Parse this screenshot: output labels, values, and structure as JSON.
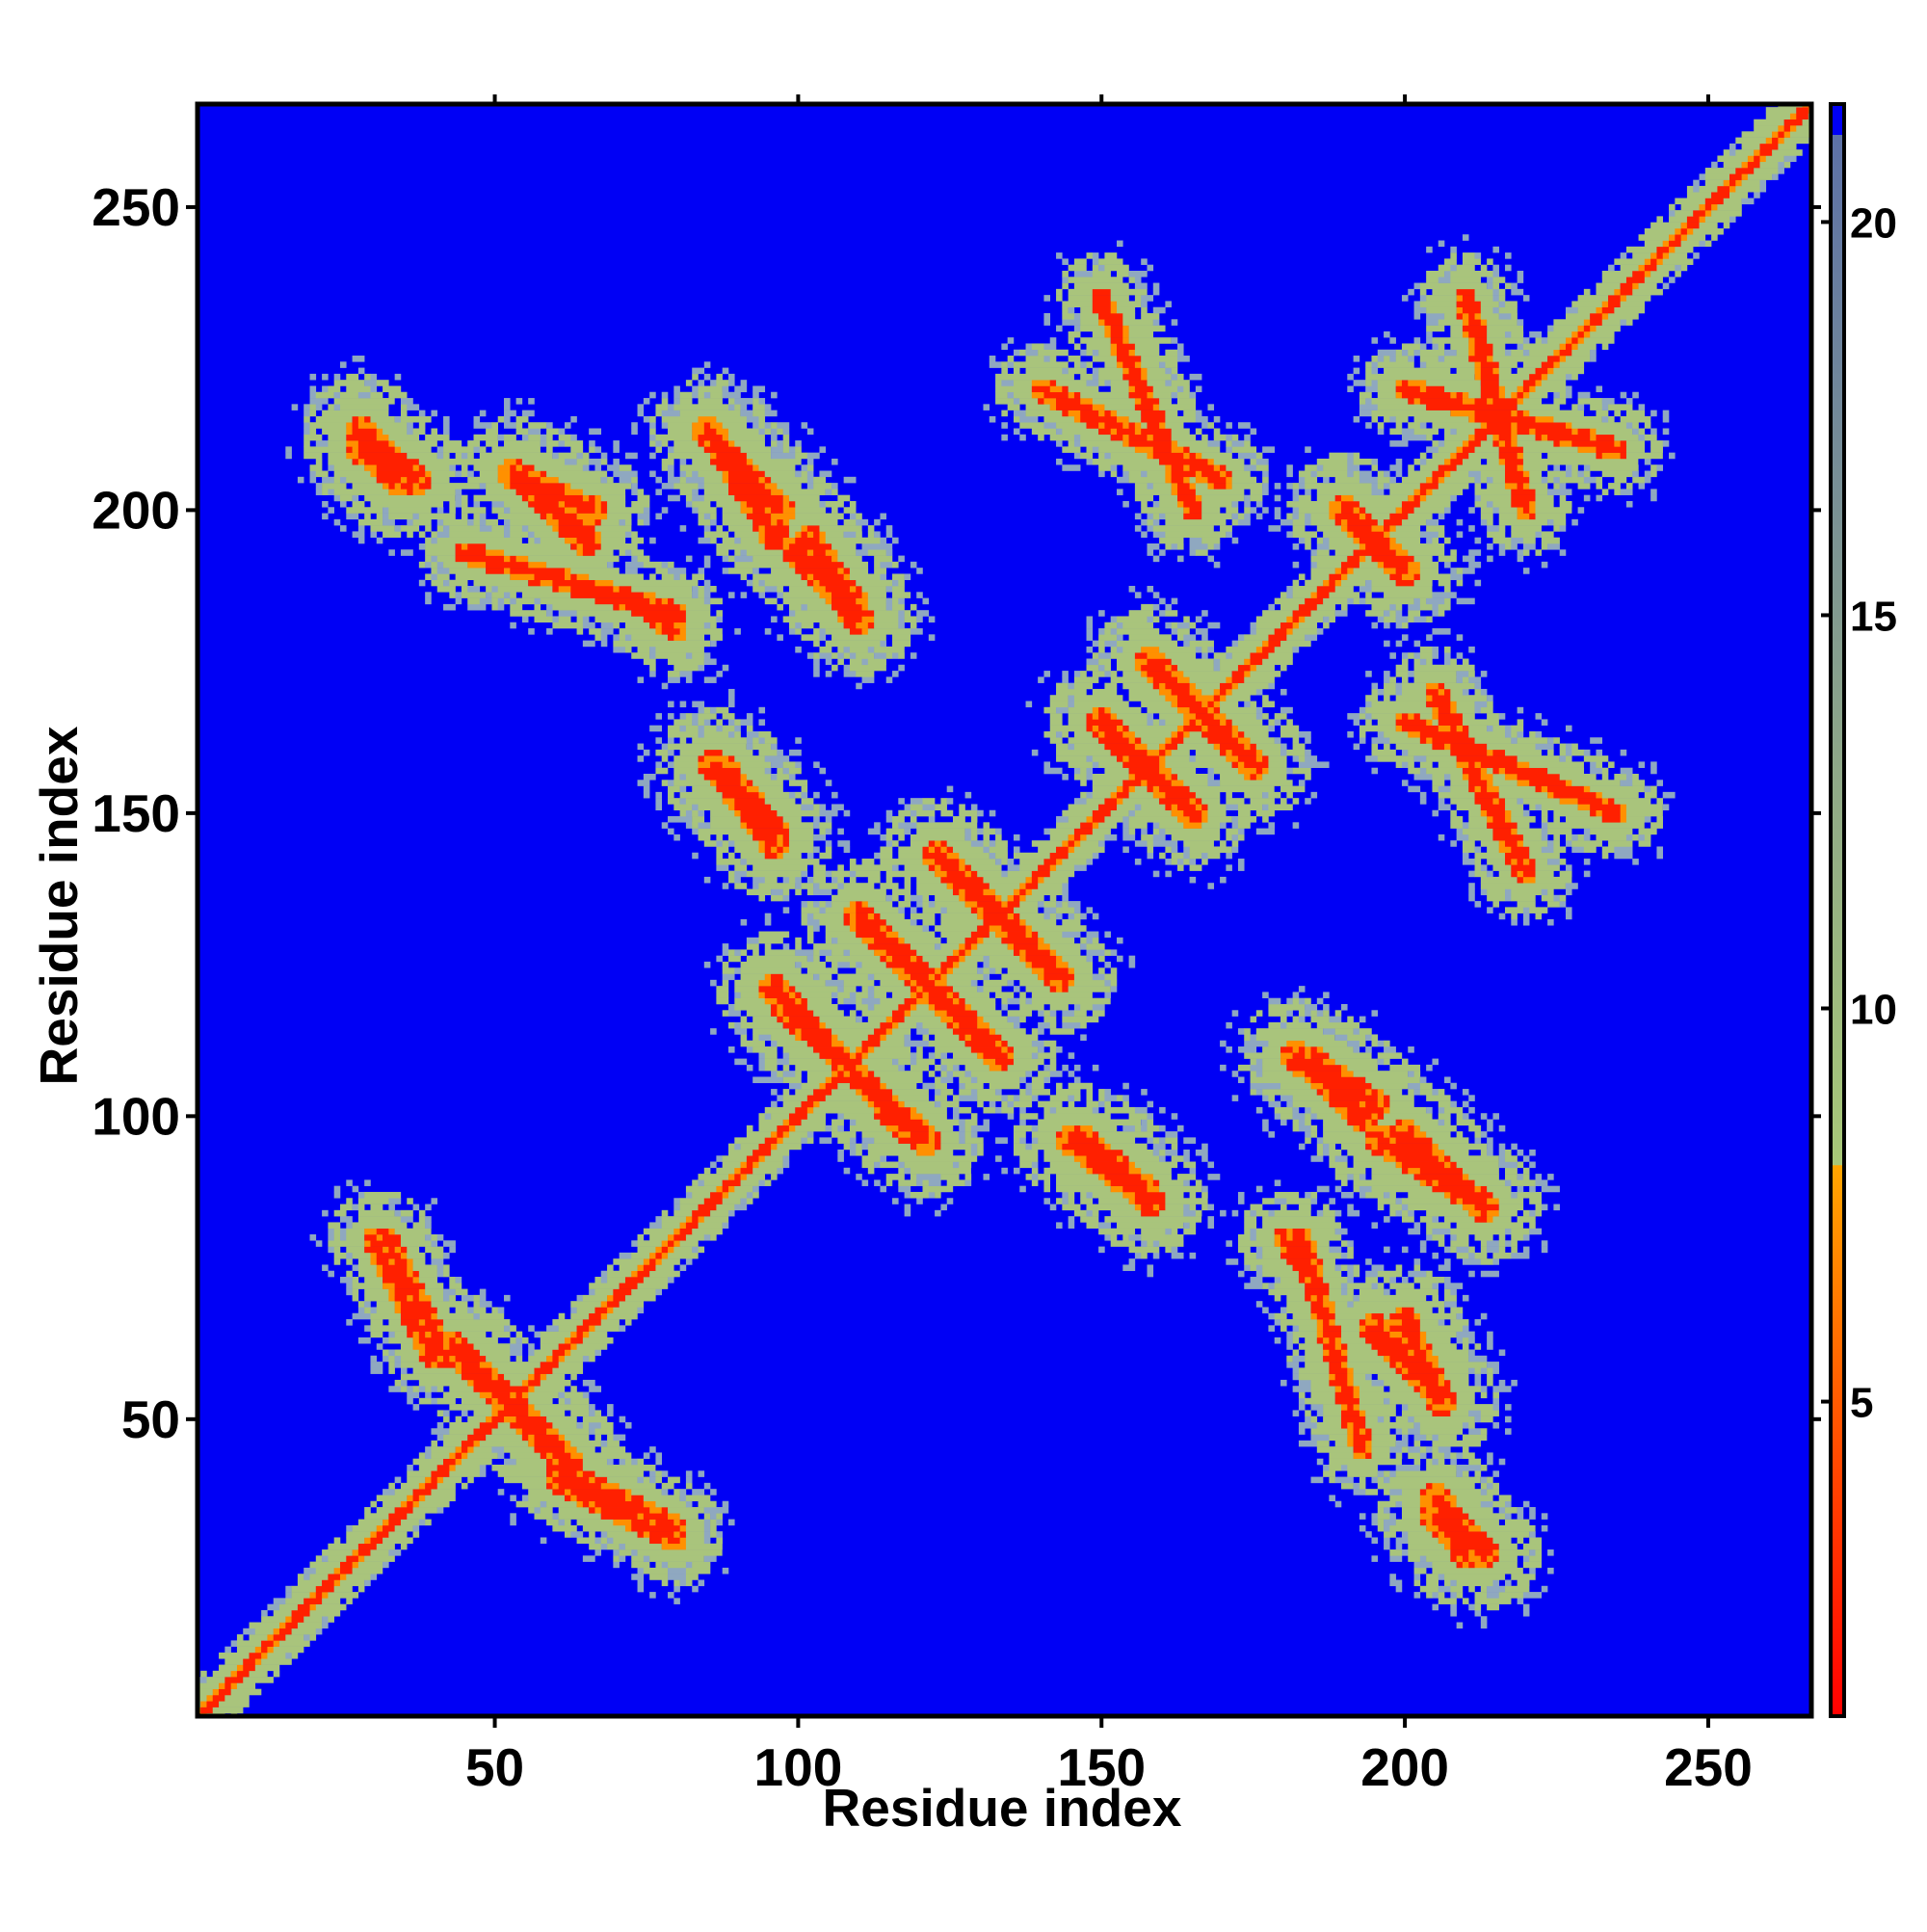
{
  "chart_data": {
    "type": "heatmap",
    "title": "",
    "xlabel": "Residue index",
    "ylabel": "Residue index",
    "xlim": [
      1,
      267
    ],
    "ylim": [
      1,
      267
    ],
    "x_ticks": [
      50,
      100,
      150,
      200,
      250
    ],
    "y_ticks": [
      50,
      100,
      150,
      200,
      250
    ],
    "colorbar": {
      "ticks": [
        5,
        10,
        15,
        20
      ],
      "range": [
        1,
        21.5
      ],
      "stops": [
        {
          "value": 1,
          "color": "#ff0000"
        },
        {
          "value": 5,
          "color": "#ff5a00"
        },
        {
          "value": 8,
          "color": "#ffa500"
        },
        {
          "value": 8.01,
          "color": "#a8c878"
        },
        {
          "value": 13,
          "color": "#8fa888"
        },
        {
          "value": 21.5,
          "color": "#5a6ea8"
        }
      ]
    },
    "background_color": "#0000f5",
    "colors": {
      "near": "#ff2000",
      "mid": "#ff9000",
      "shell": "#a9c47c",
      "sparse": "#8fa8c0",
      "background": "#0000f5"
    },
    "diagonal": {
      "from": 1,
      "to": 267,
      "near_width": 2,
      "shell_width": 6
    },
    "contact_bands": [
      {
        "x1": 28,
        "y1": 210,
        "x2": 34,
        "y2": 205,
        "w": 5
      },
      {
        "x1": 55,
        "y1": 205,
        "x2": 65,
        "y2": 195,
        "w": 5
      },
      {
        "x1": 45,
        "y1": 193,
        "x2": 80,
        "y2": 183,
        "w": 4
      },
      {
        "x1": 85,
        "y1": 213,
        "x2": 97,
        "y2": 200,
        "w": 5
      },
      {
        "x1": 100,
        "y1": 193,
        "x2": 110,
        "y2": 182,
        "w": 5
      },
      {
        "x1": 88,
        "y1": 157,
        "x2": 96,
        "y2": 147,
        "w": 5
      },
      {
        "x1": 150,
        "y1": 165,
        "x2": 165,
        "y2": 150,
        "w": 5
      },
      {
        "x1": 158,
        "y1": 175,
        "x2": 175,
        "y2": 158,
        "w": 5
      },
      {
        "x1": 123,
        "y1": 143,
        "x2": 143,
        "y2": 123,
        "w": 5
      },
      {
        "x1": 110,
        "y1": 133,
        "x2": 130,
        "y2": 113,
        "w": 5
      },
      {
        "x1": 96,
        "y1": 121,
        "x2": 118,
        "y2": 98,
        "w": 5
      },
      {
        "x1": 145,
        "y1": 96,
        "x2": 158,
        "y2": 86,
        "w": 5
      },
      {
        "x1": 185,
        "y1": 109,
        "x2": 195,
        "y2": 102,
        "w": 5
      },
      {
        "x1": 196,
        "y1": 96,
        "x2": 212,
        "y2": 86,
        "w": 5
      },
      {
        "x1": 190,
        "y1": 200,
        "x2": 200,
        "y2": 190,
        "w": 5
      },
      {
        "x1": 45,
        "y1": 60,
        "x2": 62,
        "y2": 43,
        "w": 5
      },
      {
        "x1": 200,
        "y1": 66,
        "x2": 206,
        "y2": 53,
        "w": 5
      },
      {
        "x1": 205,
        "y1": 37,
        "x2": 213,
        "y2": 28,
        "w": 5
      },
      {
        "x1": 180,
        "y1": 80,
        "x2": 185,
        "y2": 73,
        "w": 4
      },
      {
        "x1": 60,
        "y1": 42,
        "x2": 80,
        "y2": 32,
        "w": 4
      },
      {
        "x1": 30,
        "y1": 80,
        "x2": 40,
        "y2": 60,
        "w": 4
      },
      {
        "x1": 140,
        "y1": 220,
        "x2": 170,
        "y2": 205,
        "w": 4
      },
      {
        "x1": 200,
        "y1": 220,
        "x2": 235,
        "y2": 210,
        "w": 4
      },
      {
        "x1": 200,
        "y1": 165,
        "x2": 235,
        "y2": 150,
        "w": 4
      }
    ],
    "seed": 20240611
  }
}
